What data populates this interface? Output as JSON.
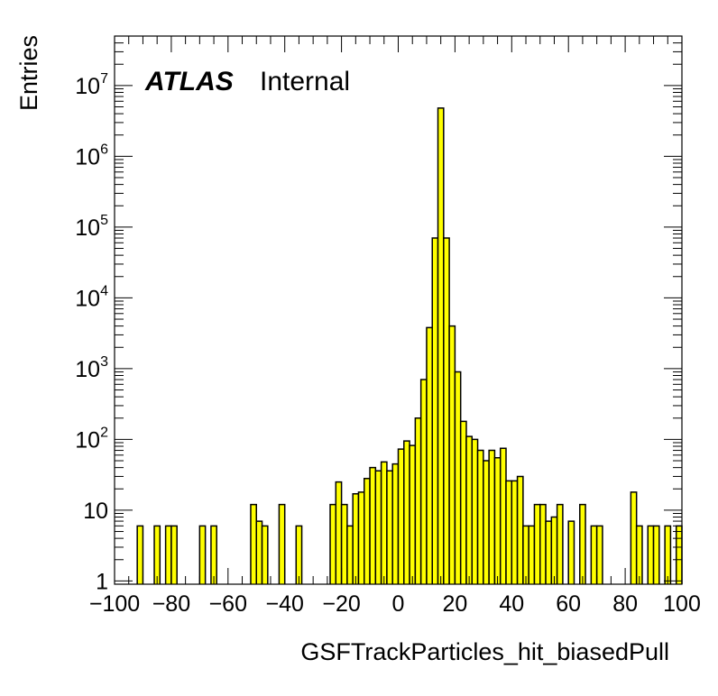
{
  "chart_data": {
    "type": "bar",
    "subtype": "histogram",
    "label_main": "ATLAS",
    "label_sub": "Internal",
    "xlabel": "GSFTrackParticles_hit_biasedPull",
    "ylabel": "Entries",
    "xlim": [
      -100,
      100
    ],
    "ylim": [
      0.9,
      50000000
    ],
    "y_scale": "log",
    "grid": false,
    "fill_color": "#ffff00",
    "edge_color": "#000000",
    "x_ticks": [
      -100,
      -80,
      -60,
      -40,
      -20,
      0,
      20,
      40,
      60,
      80,
      100
    ],
    "x_tick_labels": [
      "−100",
      "−80",
      "−60",
      "−40",
      "−20",
      "0",
      "20",
      "40",
      "60",
      "80",
      "100"
    ],
    "y_ticks": [
      {
        "value": 1,
        "base": "1",
        "exp": ""
      },
      {
        "value": 10,
        "base": "10",
        "exp": ""
      },
      {
        "value": 100,
        "base": "10",
        "exp": "2"
      },
      {
        "value": 1000,
        "base": "10",
        "exp": "3"
      },
      {
        "value": 10000,
        "base": "10",
        "exp": "4"
      },
      {
        "value": 100000,
        "base": "10",
        "exp": "5"
      },
      {
        "value": 1000000,
        "base": "10",
        "exp": "6"
      },
      {
        "value": 10000000,
        "base": "10",
        "exp": "7"
      }
    ],
    "bin_edges_start": -100,
    "bin_width": 2,
    "values": [
      0,
      0,
      0,
      0,
      6,
      0,
      0,
      6,
      0,
      6,
      6,
      0,
      0,
      0,
      0,
      6,
      0,
      6,
      0,
      0,
      0,
      0,
      0,
      0,
      12,
      7,
      6,
      0,
      0,
      12,
      0,
      0,
      6,
      0,
      0,
      0,
      0,
      0,
      12,
      25,
      12,
      6,
      17,
      18,
      28,
      40,
      36,
      48,
      36,
      45,
      73,
      95,
      82,
      200,
      700,
      3800,
      70000,
      4800000,
      70000,
      4000,
      900,
      180,
      110,
      100,
      70,
      50,
      70,
      55,
      75,
      26,
      26,
      30,
      6,
      6,
      12,
      12,
      7,
      8,
      12,
      0,
      7,
      0,
      12,
      0,
      6,
      6,
      0,
      0,
      0,
      0,
      0,
      18,
      6,
      0,
      6,
      6,
      0,
      6,
      0,
      6,
      0,
      0,
      0,
      0,
      0
    ]
  }
}
